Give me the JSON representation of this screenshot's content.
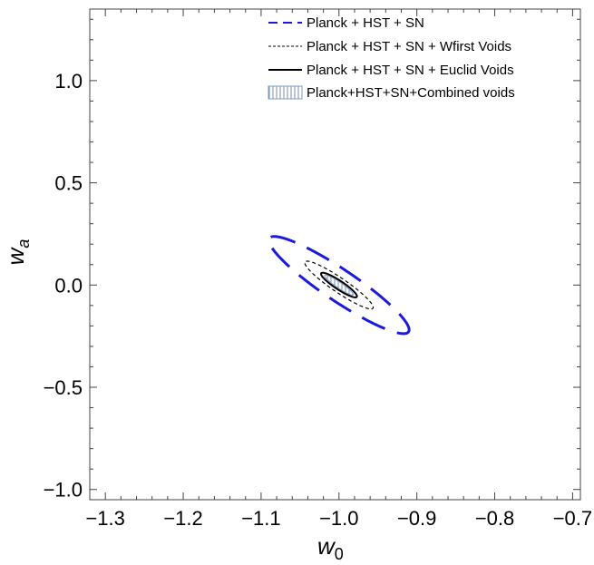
{
  "chart_data": {
    "type": "contour",
    "xlabel_main": "w",
    "xlabel_sub": "0",
    "ylabel_main": "w",
    "ylabel_sub": "a",
    "xlim": [
      -1.32,
      -0.69
    ],
    "ylim": [
      -1.05,
      1.35
    ],
    "x_ticks": [
      -1.3,
      -1.2,
      -1.1,
      -1.0,
      -0.9,
      -0.8,
      -0.7
    ],
    "x_tick_labels": [
      "−1.3",
      "−1.2",
      "−1.1",
      "−1.0",
      "−0.9",
      "−0.8",
      "−0.7"
    ],
    "y_ticks": [
      -1.0,
      -0.5,
      0.0,
      0.5,
      1.0
    ],
    "y_tick_labels": [
      "−1.0",
      "−0.5",
      "0.0",
      "0.5",
      "1.0"
    ],
    "legend_position": "top-right",
    "series": [
      {
        "name": "Planck + HST + SN",
        "style": "long-dash",
        "color": "#1a1adb",
        "center": [
          -1.0,
          0.0
        ],
        "half_axes": [
          0.252,
          0.033
        ],
        "angle_deg": -70.4
      },
      {
        "name": "Planck + HST + SN + Wfirst Voids",
        "style": "short-dash",
        "color": "#000000",
        "center": [
          -1.0,
          0.0
        ],
        "half_axes": [
          0.124,
          0.015
        ],
        "angle_deg": -70.4
      },
      {
        "name": "Planck + HST + SN + Euclid Voids",
        "style": "solid",
        "color": "#000000",
        "center": [
          -1.0,
          0.0
        ],
        "half_axes": [
          0.064,
          0.009
        ],
        "angle_deg": -70.4
      },
      {
        "name": "Planck+HST+SN+Combined voids",
        "style": "hatched-fill",
        "color": "#7a9cc6",
        "center": [
          -1.0,
          0.0
        ],
        "half_axes": [
          0.052,
          0.006
        ],
        "angle_deg": -70.4
      }
    ]
  }
}
